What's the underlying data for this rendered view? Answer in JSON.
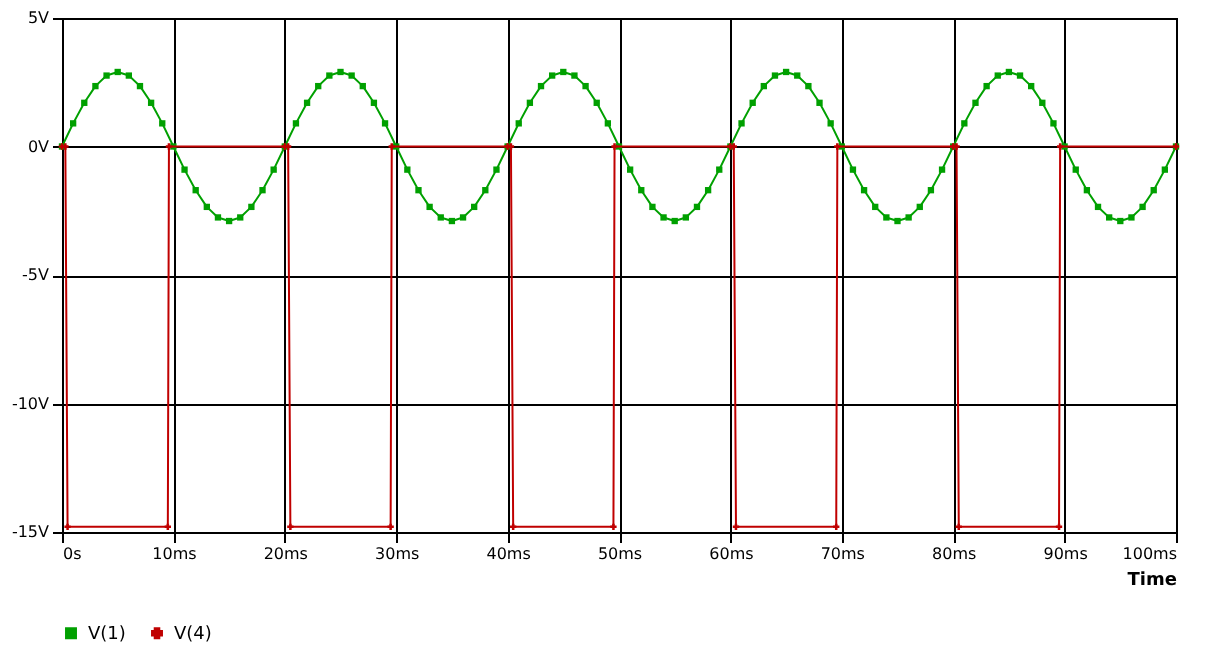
{
  "chart_data": {
    "type": "line",
    "xlabel": "Time",
    "xlim": [
      0,
      100
    ],
    "xticks": [
      {
        "value": 0,
        "label": "0s"
      },
      {
        "value": 10,
        "label": "10ms"
      },
      {
        "value": 20,
        "label": "20ms"
      },
      {
        "value": 30,
        "label": "30ms"
      },
      {
        "value": 40,
        "label": "40ms"
      },
      {
        "value": 50,
        "label": "50ms"
      },
      {
        "value": 60,
        "label": "60ms"
      },
      {
        "value": 70,
        "label": "70ms"
      },
      {
        "value": 80,
        "label": "80ms"
      },
      {
        "value": 90,
        "label": "90ms"
      },
      {
        "value": 100,
        "label": "100ms"
      }
    ],
    "ylim": [
      -15,
      5
    ],
    "yticks": [
      {
        "value": 5,
        "label": "5V"
      },
      {
        "value": 0,
        "label": "0V"
      },
      {
        "value": -5,
        "label": "-5V"
      },
      {
        "value": -10,
        "label": "-10V"
      },
      {
        "value": -15,
        "label": "-15V"
      }
    ],
    "grid": true,
    "legend": "bottom",
    "line_style": "solid",
    "series": [
      {
        "name": "V(1)",
        "color": "#00a000",
        "marker": "square",
        "x": [
          0,
          1,
          2,
          3,
          4,
          5,
          6,
          7,
          8,
          9,
          10,
          11,
          12,
          13,
          14,
          15,
          16,
          17,
          18,
          19,
          20,
          21,
          22,
          23,
          24,
          25,
          26,
          27,
          28,
          29,
          30,
          31,
          32,
          33,
          34,
          35,
          36,
          37,
          38,
          39,
          40,
          41,
          42,
          43,
          44,
          45,
          46,
          47,
          48,
          49,
          50,
          51,
          52,
          53,
          54,
          55,
          56,
          57,
          58,
          59,
          60,
          61,
          62,
          63,
          64,
          65,
          66,
          67,
          68,
          69,
          70,
          71,
          72,
          73,
          74,
          75,
          76,
          77,
          78,
          79,
          80,
          81,
          82,
          83,
          84,
          85,
          86,
          87,
          88,
          89,
          90,
          91,
          92,
          93,
          94,
          95,
          96,
          97,
          98,
          99,
          100
        ],
        "values": [
          0,
          0.9,
          1.7,
          2.35,
          2.76,
          2.9,
          2.76,
          2.35,
          1.7,
          0.9,
          0,
          -0.9,
          -1.7,
          -2.35,
          -2.76,
          -2.9,
          -2.76,
          -2.35,
          -1.7,
          -0.9,
          0,
          0.9,
          1.7,
          2.35,
          2.76,
          2.9,
          2.76,
          2.35,
          1.7,
          0.9,
          0,
          -0.9,
          -1.7,
          -2.35,
          -2.76,
          -2.9,
          -2.76,
          -2.35,
          -1.7,
          -0.9,
          0,
          0.9,
          1.7,
          2.35,
          2.76,
          2.9,
          2.76,
          2.35,
          1.7,
          0.9,
          0,
          -0.9,
          -1.7,
          -2.35,
          -2.76,
          -2.9,
          -2.76,
          -2.35,
          -1.7,
          -0.9,
          0,
          0.9,
          1.7,
          2.35,
          2.76,
          2.9,
          2.76,
          2.35,
          1.7,
          0.9,
          0,
          -0.9,
          -1.7,
          -2.35,
          -2.76,
          -2.9,
          -2.76,
          -2.35,
          -1.7,
          -0.9,
          0,
          0.9,
          1.7,
          2.35,
          2.76,
          2.9,
          2.76,
          2.35,
          1.7,
          0.9,
          0,
          -0.9,
          -1.7,
          -2.35,
          -2.76,
          -2.9,
          -2.76,
          -2.35,
          -1.7,
          -0.9,
          0
        ]
      },
      {
        "name": "V(4)",
        "color": "#c00000",
        "marker": "cross",
        "x": [
          0,
          0.3,
          0.5,
          9.5,
          9.6,
          20,
          20.3,
          20.5,
          29.5,
          29.6,
          40,
          40.3,
          40.5,
          49.5,
          49.6,
          60,
          60.3,
          60.5,
          69.5,
          69.6,
          80,
          80.3,
          80.5,
          89.5,
          89.6,
          100
        ],
        "values": [
          0,
          0,
          -14.8,
          -14.8,
          0,
          0,
          0,
          -14.8,
          -14.8,
          0,
          0,
          0,
          -14.8,
          -14.8,
          0,
          0,
          0,
          -14.8,
          -14.8,
          0,
          0,
          0,
          -14.8,
          -14.8,
          0,
          0
        ]
      }
    ]
  }
}
